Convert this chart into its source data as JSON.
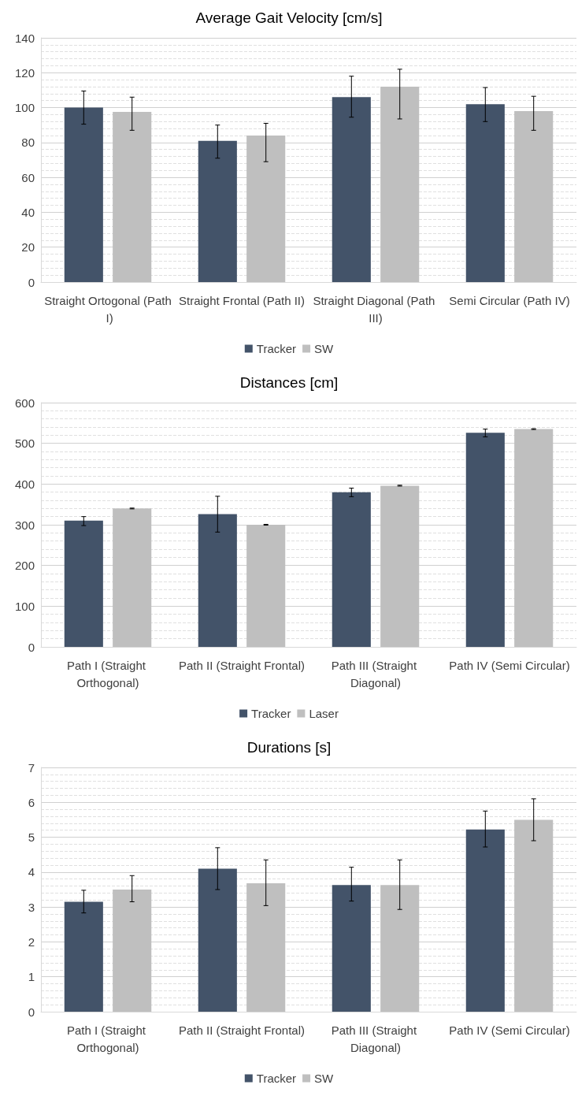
{
  "chart_data": [
    {
      "type": "bar",
      "title": "Average Gait Velocity [cm/s]",
      "categories": [
        "Straight Ortogonal (Path I)",
        "Straight Frontal (Path II)",
        "Straight Diagonal (Path III)",
        "Semi Circular (Path IV)"
      ],
      "series": [
        {
          "name": "Tracker",
          "color": "#435369",
          "values": [
            100,
            81,
            106,
            102
          ],
          "errors": [
            [
              90.5,
              109.5
            ],
            [
              71,
              90
            ],
            [
              94.5,
              118
            ],
            [
              92,
              111.5
            ]
          ]
        },
        {
          "name": "SW",
          "color": "#bfbfbf",
          "values": [
            97.5,
            84,
            112,
            98
          ],
          "errors": [
            [
              87,
              106
            ],
            [
              69,
              91
            ],
            [
              93.5,
              122
            ],
            [
              87,
              106.5
            ]
          ]
        }
      ],
      "ylim": [
        0,
        140
      ],
      "yticks": [
        0,
        20,
        40,
        60,
        80,
        100,
        120,
        140
      ],
      "grid": "y",
      "legend": "bottom"
    },
    {
      "type": "bar",
      "title": "Distances [cm]",
      "categories": [
        "Path I (Straight Orthogonal)",
        "Path II (Straight Frontal)",
        "Path III (Straight Diagonal)",
        "Path IV (Semi Circular)"
      ],
      "series": [
        {
          "name": "Tracker",
          "color": "#435369",
          "values": [
            310,
            326,
            380,
            526
          ],
          "errors": [
            [
              298,
              320
            ],
            [
              282,
              370
            ],
            [
              369,
              390
            ],
            [
              516,
              535
            ]
          ]
        },
        {
          "name": "Laser",
          "color": "#bfbfbf",
          "values": [
            340,
            300,
            396,
            535
          ],
          "errors": [
            [
              339,
              341
            ],
            [
              299,
              301
            ],
            [
              395,
              397
            ],
            [
              534,
              536
            ]
          ]
        }
      ],
      "ylim": [
        0,
        600
      ],
      "yticks": [
        0,
        100,
        200,
        300,
        400,
        500,
        600
      ],
      "grid": "y",
      "legend": "bottom"
    },
    {
      "type": "bar",
      "title": "Durations [s]",
      "categories": [
        "Path I (Straight Orthogonal)",
        "Path II (Straight Frontal)",
        "Path III (Straight Diagonal)",
        "Path IV (Semi Circular)"
      ],
      "series": [
        {
          "name": "Tracker",
          "color": "#435369",
          "values": [
            3.15,
            4.1,
            3.63,
            5.22
          ],
          "errors": [
            [
              2.83,
              3.48
            ],
            [
              3.5,
              4.7
            ],
            [
              3.17,
              4.14
            ],
            [
              4.72,
              5.75
            ]
          ]
        },
        {
          "name": "SW",
          "color": "#bfbfbf",
          "values": [
            3.5,
            3.68,
            3.63,
            5.5
          ],
          "errors": [
            [
              3.15,
              3.9
            ],
            [
              3.04,
              4.35
            ],
            [
              2.93,
              4.35
            ],
            [
              4.9,
              6.1
            ]
          ]
        }
      ],
      "ylim": [
        0,
        7
      ],
      "yticks": [
        0,
        1,
        2,
        3,
        4,
        5,
        6,
        7
      ],
      "grid": "y",
      "legend": "bottom"
    }
  ]
}
